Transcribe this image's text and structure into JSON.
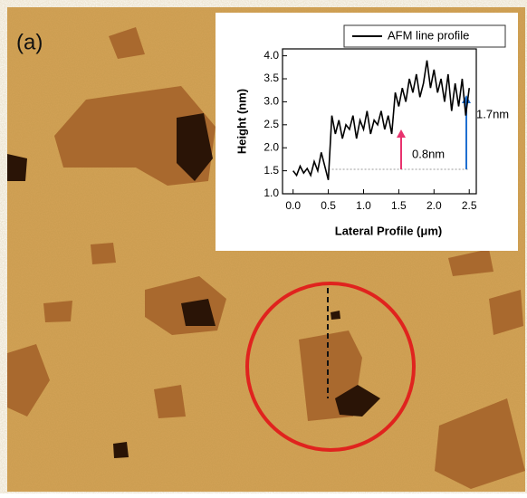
{
  "panel_label": "(a)",
  "chart_data": {
    "type": "line",
    "xlabel": "Lateral Profile (μm)",
    "ylabel": "Height (nm)",
    "x": [
      0.0,
      0.05,
      0.1,
      0.15,
      0.2,
      0.25,
      0.3,
      0.35,
      0.4,
      0.45,
      0.5,
      0.55,
      0.6,
      0.65,
      0.7,
      0.75,
      0.8,
      0.85,
      0.9,
      0.95,
      1.0,
      1.05,
      1.1,
      1.15,
      1.2,
      1.25,
      1.3,
      1.35,
      1.4,
      1.45,
      1.5,
      1.55,
      1.6,
      1.65,
      1.7,
      1.75,
      1.8,
      1.85,
      1.9,
      1.95,
      2.0,
      2.05,
      2.1,
      2.15,
      2.2,
      2.25,
      2.3,
      2.35,
      2.4,
      2.45,
      2.5
    ],
    "series": [
      {
        "name": "AFM line profile",
        "color": "#000000",
        "values": [
          1.5,
          1.4,
          1.6,
          1.45,
          1.55,
          1.4,
          1.7,
          1.5,
          1.9,
          1.6,
          1.3,
          2.7,
          2.3,
          2.6,
          2.2,
          2.5,
          2.4,
          2.7,
          2.2,
          2.6,
          2.4,
          2.8,
          2.3,
          2.6,
          2.5,
          2.8,
          2.4,
          2.7,
          2.3,
          3.2,
          2.9,
          3.3,
          3.0,
          3.5,
          3.2,
          3.6,
          3.1,
          3.4,
          3.9,
          3.3,
          3.7,
          3.2,
          3.5,
          3.0,
          3.6,
          2.8,
          3.4,
          2.9,
          3.5,
          2.7,
          3.3
        ]
      }
    ],
    "xlim": [
      -0.15,
      2.6
    ],
    "xticks": [
      {
        "value": 0,
        "label": "0.0"
      },
      0.5,
      {
        "value": 1,
        "label": "1.0"
      },
      1.5,
      {
        "value": 2,
        "label": "2.0"
      },
      2.5
    ],
    "ylim": [
      1.0,
      4.15
    ],
    "yticks": [
      {
        "value": 1,
        "label": "1.0"
      },
      1.5,
      {
        "value": 2,
        "label": "2.0"
      },
      2.5,
      {
        "value": 3,
        "label": "3.0"
      },
      3.5,
      {
        "value": 4,
        "label": "4.0"
      }
    ],
    "annotations": [
      "0.8nm",
      "1.7nm"
    ],
    "legend": "upper right"
  }
}
